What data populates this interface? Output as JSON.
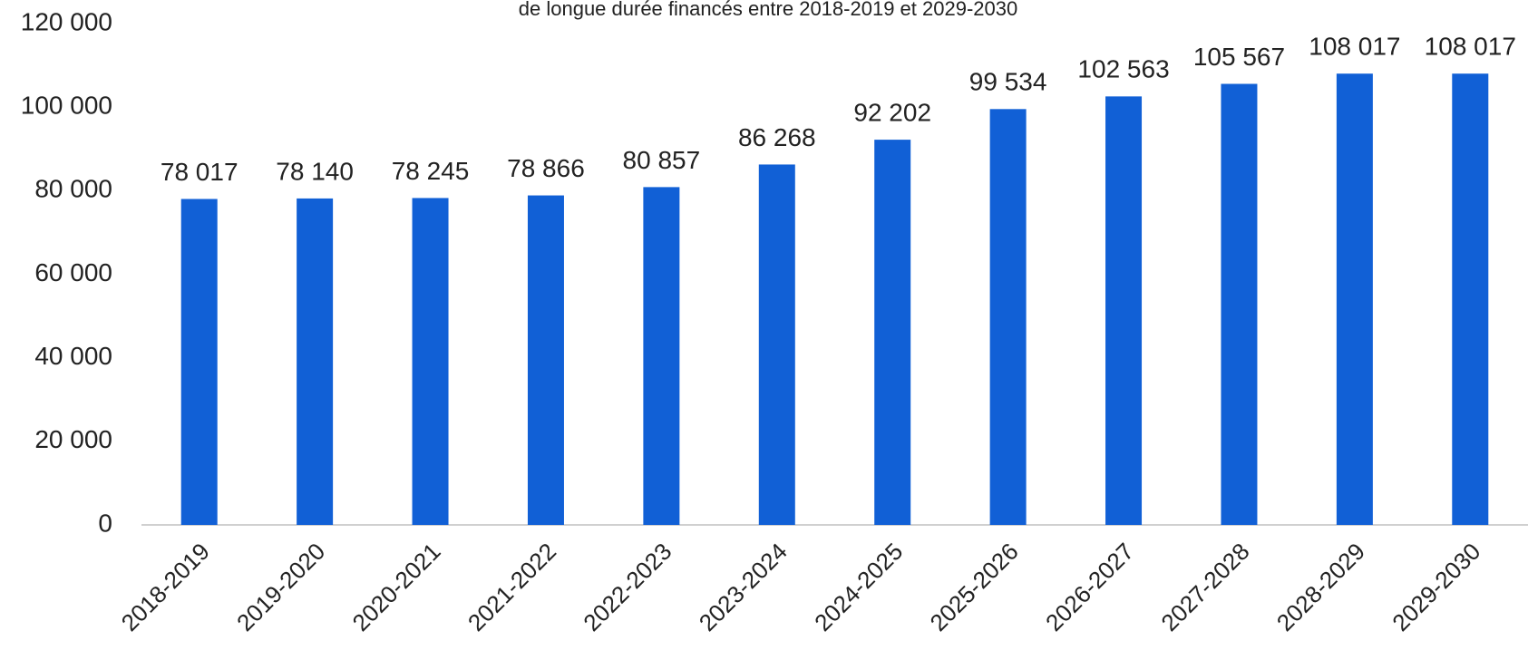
{
  "chart_data": {
    "type": "bar",
    "title": "de longue durée financés entre 2018-2019 et 2029-2030",
    "categories": [
      "2018-2019",
      "2019-2020",
      "2020-2021",
      "2021-2022",
      "2022-2023",
      "2023-2024",
      "2024-2025",
      "2025-2026",
      "2026-2027",
      "2027-2028",
      "2028-2029",
      "2029-2030"
    ],
    "values": [
      78017,
      78140,
      78245,
      78866,
      80857,
      86268,
      92202,
      99534,
      102563,
      105567,
      108017,
      108017
    ],
    "value_labels": [
      "78 017",
      "78 140",
      "78 245",
      "78 866",
      "80 857",
      "86 268",
      "92 202",
      "99 534",
      "102 563",
      "105 567",
      "108 017",
      "108 017"
    ],
    "color": "#1160d6",
    "ylim": [
      0,
      120000
    ],
    "yticks": [
      0,
      {
        "value": 20000,
        "label": "20 000"
      },
      {
        "value": 40000,
        "label": "40 000"
      },
      {
        "value": 60000,
        "label": "60 000"
      },
      {
        "value": 80000,
        "label": "80 000"
      },
      {
        "value": 100000,
        "label": "100 000"
      },
      {
        "value": 120000,
        "label": "120 000"
      }
    ],
    "grid": false
  }
}
